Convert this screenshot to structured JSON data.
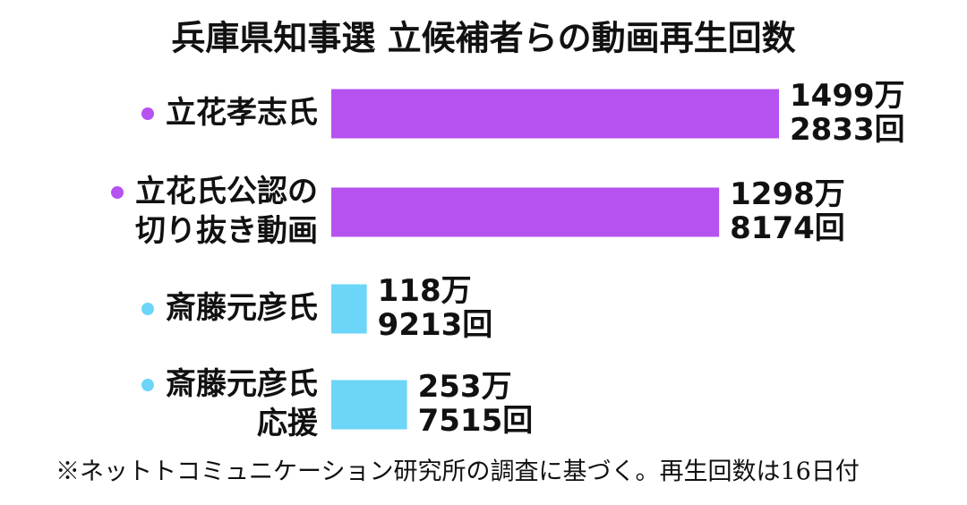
{
  "chart_data": {
    "type": "bar",
    "orientation": "horizontal",
    "title": "兵庫県知事選 立候補者らの動画再生回数",
    "categories": [
      "立花孝志氏",
      "立花氏公認の\n切り抜き動画",
      "斎藤元彦氏",
      "斎藤元彦氏\n応援"
    ],
    "values": [
      14992833,
      12988174,
      1189213,
      2537515
    ],
    "value_labels": [
      "1499万\n2833回",
      "1298万\n8174回",
      "118万\n9213回",
      "253万\n7515回"
    ],
    "colors": [
      "#b652f0",
      "#b652f0",
      "#6dd5f7",
      "#6dd5f7"
    ],
    "note": "※ネットトコミュニケーション研究所の調査に基づく。再生回数は16日付"
  }
}
